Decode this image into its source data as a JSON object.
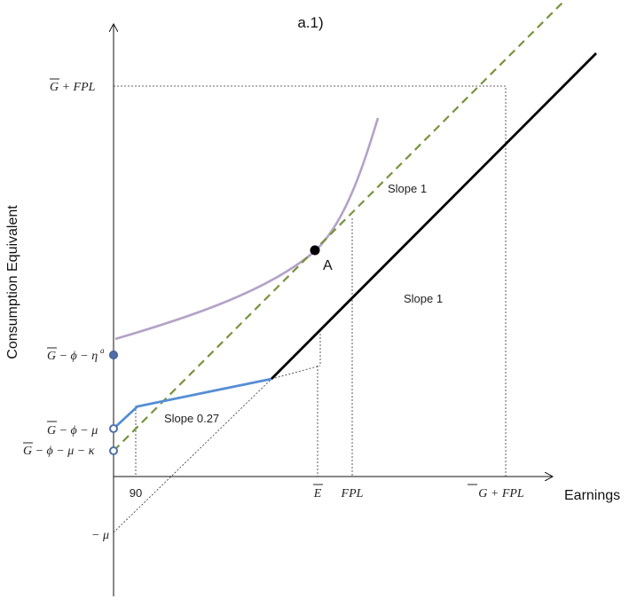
{
  "chart_data": {
    "type": "line",
    "title": "a.1)",
    "xlabel": "Earnings",
    "ylabel": "Consumption Equivalent",
    "xlim": [
      0,
      590
    ],
    "ylim": [
      -140,
      560
    ],
    "x_ticks": [
      {
        "key": "tick_90",
        "label": "90"
      },
      {
        "key": "tick_Ebar",
        "label": "E"
      },
      {
        "key": "tick_FPL",
        "label": "FPL"
      },
      {
        "key": "tick_GFPL",
        "label": "G + FPL"
      }
    ],
    "y_ticks": [
      {
        "key": "ytick_GFPL",
        "label": "G + FPL"
      },
      {
        "key": "ytick_eta",
        "label": "G − ϕ − η"
      },
      {
        "key": "ytick_mu",
        "label": "G − ϕ − μ"
      },
      {
        "key": "ytick_kappa",
        "label": "G − ϕ − μ − κ"
      },
      {
        "key": "ytick_negmu",
        "label": "− μ"
      }
    ],
    "eta_superscript": "a",
    "point_label": "A",
    "annotations": [
      "Slope 1",
      "Slope 1",
      "Slope 0.27"
    ],
    "colors": {
      "black_line": "#000000",
      "dashed_green": "#77933c",
      "blue_line": "#558ed5",
      "indifference_curve": "#b3a2c7",
      "marker": "#4f6fa8"
    }
  }
}
